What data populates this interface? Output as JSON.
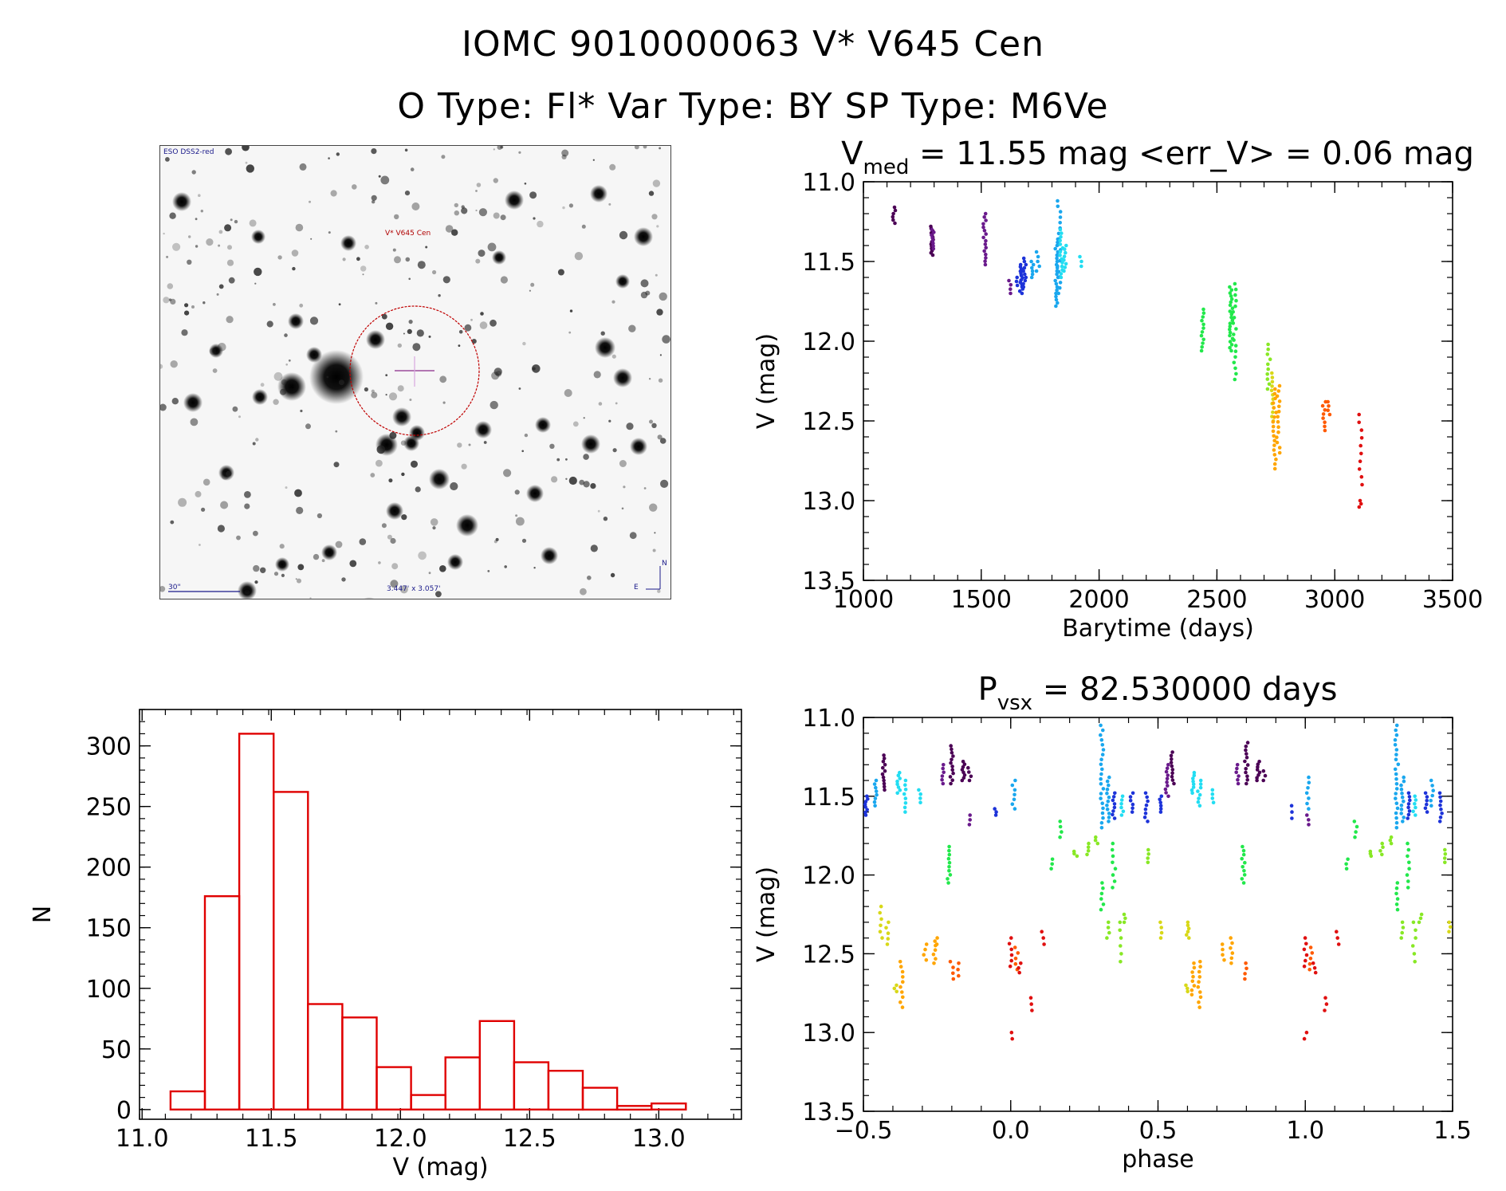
{
  "header": {
    "title_line1": "IOMC 9010000063   V* V645 Cen",
    "title_line2": "O Type: Fl*  Var Type: BY  SP Type: M6Ve"
  },
  "finder": {
    "survey_label": "ESO DSS2-red",
    "object_label": "V* V645 Cen",
    "scale_label": "30\"",
    "fov_label": "3.447' x 3.057'",
    "compass_n": "N",
    "compass_e": "E"
  },
  "colors": {
    "hist": "#e00000",
    "palette": [
      "#4b0055",
      "#6a1a8c",
      "#1d33d9",
      "#1aa7ee",
      "#22ddf2",
      "#22e84b",
      "#88e825",
      "#d8d818",
      "#ffa500",
      "#ff5a00",
      "#e01010"
    ]
  },
  "chart_data": [
    {
      "id": "lightcurve",
      "type": "scatter",
      "title_prefix": "V",
      "title_sub": "med",
      "title_rest": " = 11.55 mag <err_V> = 0.06 mag",
      "xlabel": "Barytime (days)",
      "ylabel": "V (mag)",
      "xlim": [
        1000,
        3500
      ],
      "ylim": [
        13.5,
        11.0
      ],
      "xticks": [
        "1000",
        "1500",
        "2000",
        "2500",
        "3000",
        "3500"
      ],
      "yticks": [
        "11.0",
        "11.5",
        "12.0",
        "12.5",
        "13.0",
        "13.5"
      ],
      "groups": [
        {
          "x": 1130,
          "y0": 11.16,
          "y1": 11.26,
          "n": 6,
          "c": 0
        },
        {
          "x": 1290,
          "y0": 11.28,
          "y1": 11.46,
          "n": 14,
          "c": 0
        },
        {
          "x": 1295,
          "y0": 11.3,
          "y1": 11.42,
          "n": 8,
          "c": 1
        },
        {
          "x": 1515,
          "y0": 11.2,
          "y1": 11.52,
          "n": 16,
          "c": 1
        },
        {
          "x": 1620,
          "y0": 11.62,
          "y1": 11.7,
          "n": 4,
          "c": 1
        },
        {
          "x": 1650,
          "y0": 11.6,
          "y1": 11.65,
          "n": 3,
          "c": 2
        },
        {
          "x": 1670,
          "y0": 11.52,
          "y1": 11.7,
          "n": 14,
          "c": 2
        },
        {
          "x": 1685,
          "y0": 11.48,
          "y1": 11.66,
          "n": 10,
          "c": 2
        },
        {
          "x": 1715,
          "y0": 11.5,
          "y1": 11.6,
          "n": 6,
          "c": 3
        },
        {
          "x": 1740,
          "y0": 11.44,
          "y1": 11.56,
          "n": 5,
          "c": 3
        },
        {
          "x": 1820,
          "y0": 11.36,
          "y1": 11.78,
          "n": 22,
          "c": 3
        },
        {
          "x": 1830,
          "y0": 11.12,
          "y1": 11.7,
          "n": 18,
          "c": 3
        },
        {
          "x": 1840,
          "y0": 11.3,
          "y1": 11.6,
          "n": 14,
          "c": 4
        },
        {
          "x": 1855,
          "y0": 11.4,
          "y1": 11.56,
          "n": 8,
          "c": 4
        },
        {
          "x": 1920,
          "y0": 11.47,
          "y1": 11.53,
          "n": 3,
          "c": 4
        },
        {
          "x": 2440,
          "y0": 11.8,
          "y1": 12.06,
          "n": 12,
          "c": 5
        },
        {
          "x": 2560,
          "y0": 11.66,
          "y1": 12.06,
          "n": 22,
          "c": 5
        },
        {
          "x": 2575,
          "y0": 11.64,
          "y1": 12.24,
          "n": 18,
          "c": 5
        },
        {
          "x": 2720,
          "y0": 12.02,
          "y1": 12.3,
          "n": 10,
          "c": 6
        },
        {
          "x": 2735,
          "y0": 12.2,
          "y1": 12.5,
          "n": 12,
          "c": 7
        },
        {
          "x": 2745,
          "y0": 12.3,
          "y1": 12.8,
          "n": 18,
          "c": 8
        },
        {
          "x": 2760,
          "y0": 12.28,
          "y1": 12.7,
          "n": 14,
          "c": 8
        },
        {
          "x": 2955,
          "y0": 12.38,
          "y1": 12.56,
          "n": 8,
          "c": 9
        },
        {
          "x": 2975,
          "y0": 12.38,
          "y1": 12.46,
          "n": 4,
          "c": 9
        },
        {
          "x": 3110,
          "y0": 12.46,
          "y1": 12.9,
          "n": 10,
          "c": 10
        },
        {
          "x": 3110,
          "y0": 13.0,
          "y1": 13.04,
          "n": 3,
          "c": 10
        }
      ]
    },
    {
      "id": "histogram",
      "type": "bar",
      "title": "",
      "xlabel": "V (mag)",
      "ylabel": "N",
      "xlim": [
        10.99,
        13.32
      ],
      "ylim": [
        -8,
        330
      ],
      "xticks": [
        "11.0",
        "11.5",
        "12.0",
        "12.5",
        "13.0"
      ],
      "yticks": [
        "0",
        "50",
        "100",
        "150",
        "200",
        "250",
        "300"
      ],
      "bin_width": 0.133,
      "bin_lefts": [
        11.11,
        11.243,
        11.376,
        11.509,
        11.642,
        11.775,
        11.908,
        12.041,
        12.174,
        12.307,
        12.44,
        12.573,
        12.706,
        12.839,
        12.972
      ],
      "values": [
        15,
        176,
        310,
        262,
        87,
        76,
        35,
        12,
        43,
        73,
        39,
        32,
        18,
        3,
        5
      ]
    },
    {
      "id": "phaseplot",
      "type": "scatter",
      "title_prefix": "P",
      "title_sub": "vsx",
      "title_rest": " = 82.530000 days",
      "xlabel": "phase",
      "ylabel": "V (mag)",
      "xlim": [
        -0.5,
        1.5
      ],
      "ylim": [
        13.5,
        11.0
      ],
      "xticks": [
        "−0.5",
        "0.0",
        "0.5",
        "1.0",
        "1.5"
      ],
      "yticks": [
        "11.0",
        "11.5",
        "12.0",
        "12.5",
        "13.0",
        "13.5"
      ],
      "groups": [
        {
          "x": -0.49,
          "y0": 11.5,
          "y1": 11.62,
          "n": 8,
          "c": 2
        },
        {
          "x": -0.46,
          "y0": 11.4,
          "y1": 11.56,
          "n": 8,
          "c": 3
        },
        {
          "x": -0.43,
          "y0": 11.24,
          "y1": 11.46,
          "n": 12,
          "c": 0
        },
        {
          "x": -0.38,
          "y0": 11.35,
          "y1": 11.48,
          "n": 8,
          "c": 4
        },
        {
          "x": -0.36,
          "y0": 11.4,
          "y1": 11.6,
          "n": 8,
          "c": 4
        },
        {
          "x": -0.31,
          "y0": 11.46,
          "y1": 11.54,
          "n": 4,
          "c": 4
        },
        {
          "x": -0.23,
          "y0": 11.3,
          "y1": 11.42,
          "n": 6,
          "c": 1
        },
        {
          "x": -0.2,
          "y0": 11.18,
          "y1": 11.42,
          "n": 12,
          "c": 0
        },
        {
          "x": -0.16,
          "y0": 11.28,
          "y1": 11.4,
          "n": 8,
          "c": 0
        },
        {
          "x": -0.14,
          "y0": 11.32,
          "y1": 11.4,
          "n": 4,
          "c": 0
        },
        {
          "x": -0.14,
          "y0": 11.62,
          "y1": 11.68,
          "n": 3,
          "c": 1
        },
        {
          "x": -0.05,
          "y0": 11.58,
          "y1": 11.62,
          "n": 3,
          "c": 2
        },
        {
          "x": 0.01,
          "y0": 11.4,
          "y1": 11.58,
          "n": 7,
          "c": 3
        },
        {
          "x": -0.21,
          "y0": 11.82,
          "y1": 12.05,
          "n": 10,
          "c": 5
        },
        {
          "x": 0.14,
          "y0": 11.9,
          "y1": 11.96,
          "n": 3,
          "c": 5
        },
        {
          "x": 0.17,
          "y0": 11.66,
          "y1": 11.76,
          "n": 4,
          "c": 5
        },
        {
          "x": 0.22,
          "y0": 11.85,
          "y1": 11.88,
          "n": 3,
          "c": 6
        },
        {
          "x": 0.26,
          "y0": 11.8,
          "y1": 11.87,
          "n": 4,
          "c": 6
        },
        {
          "x": 0.29,
          "y0": 11.76,
          "y1": 11.8,
          "n": 3,
          "c": 6
        },
        {
          "x": 0.31,
          "y0": 11.05,
          "y1": 11.7,
          "n": 22,
          "c": 3
        },
        {
          "x": 0.33,
          "y0": 11.38,
          "y1": 11.66,
          "n": 12,
          "c": 3
        },
        {
          "x": 0.35,
          "y0": 11.48,
          "y1": 11.64,
          "n": 8,
          "c": 2
        },
        {
          "x": 0.38,
          "y0": 11.5,
          "y1": 11.62,
          "n": 6,
          "c": 4
        },
        {
          "x": 0.31,
          "y0": 12.05,
          "y1": 12.22,
          "n": 6,
          "c": 5
        },
        {
          "x": 0.33,
          "y0": 12.3,
          "y1": 12.4,
          "n": 4,
          "c": 6
        },
        {
          "x": 0.35,
          "y0": 11.8,
          "y1": 12.08,
          "n": 8,
          "c": 5
        },
        {
          "x": 0.37,
          "y0": 12.3,
          "y1": 12.55,
          "n": 6,
          "c": 6
        },
        {
          "x": 0.39,
          "y0": 12.25,
          "y1": 12.3,
          "n": 3,
          "c": 6
        },
        {
          "x": 0.41,
          "y0": 11.48,
          "y1": 11.6,
          "n": 6,
          "c": 2
        },
        {
          "x": 0.46,
          "y0": 11.48,
          "y1": 11.66,
          "n": 8,
          "c": 2
        },
        {
          "x": 0.47,
          "y0": 11.84,
          "y1": 11.92,
          "n": 4,
          "c": 6
        },
        {
          "x": 0.51,
          "y0": 11.5,
          "y1": 11.6,
          "n": 6,
          "c": 2
        },
        {
          "x": 0.51,
          "y0": 12.3,
          "y1": 12.4,
          "n": 4,
          "c": 7
        },
        {
          "x": 0.53,
          "y0": 11.3,
          "y1": 11.5,
          "n": 10,
          "c": 1
        },
        {
          "x": 0.55,
          "y0": 11.22,
          "y1": 11.42,
          "n": 10,
          "c": 0
        },
        {
          "x": 0.6,
          "y0": 12.3,
          "y1": 12.4,
          "n": 6,
          "c": 7
        },
        {
          "x": 0.62,
          "y0": 11.35,
          "y1": 11.48,
          "n": 8,
          "c": 4
        },
        {
          "x": 0.64,
          "y0": 11.4,
          "y1": 11.56,
          "n": 8,
          "c": 4
        },
        {
          "x": 0.62,
          "y0": 12.56,
          "y1": 12.76,
          "n": 8,
          "c": 8
        },
        {
          "x": 0.64,
          "y0": 12.55,
          "y1": 12.84,
          "n": 10,
          "c": 8
        },
        {
          "x": 0.6,
          "y0": 12.7,
          "y1": 12.74,
          "n": 3,
          "c": 7
        },
        {
          "x": 0.69,
          "y0": 11.46,
          "y1": 11.54,
          "n": 4,
          "c": 4
        },
        {
          "x": 0.72,
          "y0": 12.44,
          "y1": 12.54,
          "n": 4,
          "c": 8
        },
        {
          "x": 0.75,
          "y0": 12.4,
          "y1": 12.56,
          "n": 6,
          "c": 8
        },
        {
          "x": 0.77,
          "y0": 11.3,
          "y1": 11.42,
          "n": 6,
          "c": 1
        },
        {
          "x": 0.79,
          "y0": 11.82,
          "y1": 12.05,
          "n": 10,
          "c": 5
        },
        {
          "x": 0.8,
          "y0": 11.16,
          "y1": 11.42,
          "n": 12,
          "c": 0
        },
        {
          "x": 0.8,
          "y0": 12.56,
          "y1": 12.66,
          "n": 4,
          "c": 9
        },
        {
          "x": 0.84,
          "y0": 11.28,
          "y1": 11.4,
          "n": 8,
          "c": 0
        },
        {
          "x": 0.86,
          "y0": 11.34,
          "y1": 11.4,
          "n": 3,
          "c": 0
        },
        {
          "x": 0.95,
          "y0": 11.56,
          "y1": 11.64,
          "n": 3,
          "c": 2
        },
        {
          "x": 1.01,
          "y0": 11.38,
          "y1": 11.58,
          "n": 7,
          "c": 3
        },
        {
          "x": 1.01,
          "y0": 11.62,
          "y1": 11.68,
          "n": 3,
          "c": 1
        },
        {
          "x": -0.44,
          "y0": 12.2,
          "y1": 12.4,
          "n": 6,
          "c": 7
        },
        {
          "x": -0.42,
          "y0": 12.3,
          "y1": 12.44,
          "n": 5,
          "c": 7
        },
        {
          "x": -0.37,
          "y0": 12.55,
          "y1": 12.84,
          "n": 10,
          "c": 8
        },
        {
          "x": -0.39,
          "y0": 12.7,
          "y1": 12.74,
          "n": 3,
          "c": 7
        },
        {
          "x": -0.29,
          "y0": 12.44,
          "y1": 12.54,
          "n": 4,
          "c": 8
        },
        {
          "x": -0.26,
          "y0": 12.42,
          "y1": 12.56,
          "n": 6,
          "c": 8
        },
        {
          "x": -0.25,
          "y0": 12.4,
          "y1": 12.44,
          "n": 2,
          "c": 8
        },
        {
          "x": -0.2,
          "y0": 12.55,
          "y1": 12.66,
          "n": 4,
          "c": 9
        },
        {
          "x": -0.18,
          "y0": 12.56,
          "y1": 12.64,
          "n": 3,
          "c": 9
        },
        {
          "x": 0.0,
          "y0": 12.4,
          "y1": 12.58,
          "n": 6,
          "c": 10
        },
        {
          "x": 0.0,
          "y0": 13.0,
          "y1": 13.04,
          "n": 2,
          "c": 10
        },
        {
          "x": 0.02,
          "y0": 12.46,
          "y1": 12.6,
          "n": 5,
          "c": 9
        },
        {
          "x": 0.03,
          "y0": 12.56,
          "y1": 12.62,
          "n": 3,
          "c": 10
        },
        {
          "x": 0.07,
          "y0": 12.78,
          "y1": 12.86,
          "n": 3,
          "c": 10
        },
        {
          "x": 0.11,
          "y0": 12.36,
          "y1": 12.44,
          "n": 3,
          "c": 10
        },
        {
          "x": 1.0,
          "y0": 12.4,
          "y1": 12.58,
          "n": 6,
          "c": 10
        },
        {
          "x": 1.0,
          "y0": 13.0,
          "y1": 13.04,
          "n": 2,
          "c": 10
        },
        {
          "x": 1.02,
          "y0": 12.46,
          "y1": 12.6,
          "n": 5,
          "c": 9
        },
        {
          "x": 1.03,
          "y0": 12.56,
          "y1": 12.62,
          "n": 3,
          "c": 10
        },
        {
          "x": 1.07,
          "y0": 12.78,
          "y1": 12.86,
          "n": 3,
          "c": 10
        },
        {
          "x": 1.11,
          "y0": 12.36,
          "y1": 12.44,
          "n": 3,
          "c": 10
        },
        {
          "x": 1.14,
          "y0": 11.9,
          "y1": 11.96,
          "n": 3,
          "c": 5
        },
        {
          "x": 1.17,
          "y0": 11.66,
          "y1": 11.76,
          "n": 4,
          "c": 5
        },
        {
          "x": 1.22,
          "y0": 11.85,
          "y1": 11.88,
          "n": 3,
          "c": 6
        },
        {
          "x": 1.26,
          "y0": 11.8,
          "y1": 11.87,
          "n": 4,
          "c": 6
        },
        {
          "x": 1.29,
          "y0": 11.76,
          "y1": 11.8,
          "n": 3,
          "c": 6
        },
        {
          "x": 1.31,
          "y0": 11.05,
          "y1": 11.7,
          "n": 22,
          "c": 3
        },
        {
          "x": 1.33,
          "y0": 11.38,
          "y1": 11.66,
          "n": 12,
          "c": 3
        },
        {
          "x": 1.35,
          "y0": 11.48,
          "y1": 11.64,
          "n": 8,
          "c": 2
        },
        {
          "x": 1.37,
          "y0": 11.5,
          "y1": 11.62,
          "n": 6,
          "c": 4
        },
        {
          "x": 1.31,
          "y0": 12.05,
          "y1": 12.22,
          "n": 6,
          "c": 5
        },
        {
          "x": 1.33,
          "y0": 12.3,
          "y1": 12.4,
          "n": 4,
          "c": 6
        },
        {
          "x": 1.35,
          "y0": 11.8,
          "y1": 12.08,
          "n": 8,
          "c": 5
        },
        {
          "x": 1.37,
          "y0": 12.3,
          "y1": 12.55,
          "n": 6,
          "c": 6
        },
        {
          "x": 1.39,
          "y0": 12.25,
          "y1": 12.3,
          "n": 3,
          "c": 6
        },
        {
          "x": 1.41,
          "y0": 11.48,
          "y1": 11.6,
          "n": 6,
          "c": 2
        },
        {
          "x": 1.43,
          "y0": 11.4,
          "y1": 11.56,
          "n": 6,
          "c": 3
        },
        {
          "x": 1.46,
          "y0": 11.48,
          "y1": 11.66,
          "n": 8,
          "c": 2
        },
        {
          "x": 1.47,
          "y0": 11.84,
          "y1": 11.92,
          "n": 4,
          "c": 6
        },
        {
          "x": 1.49,
          "y0": 12.3,
          "y1": 12.36,
          "n": 3,
          "c": 7
        }
      ]
    }
  ]
}
